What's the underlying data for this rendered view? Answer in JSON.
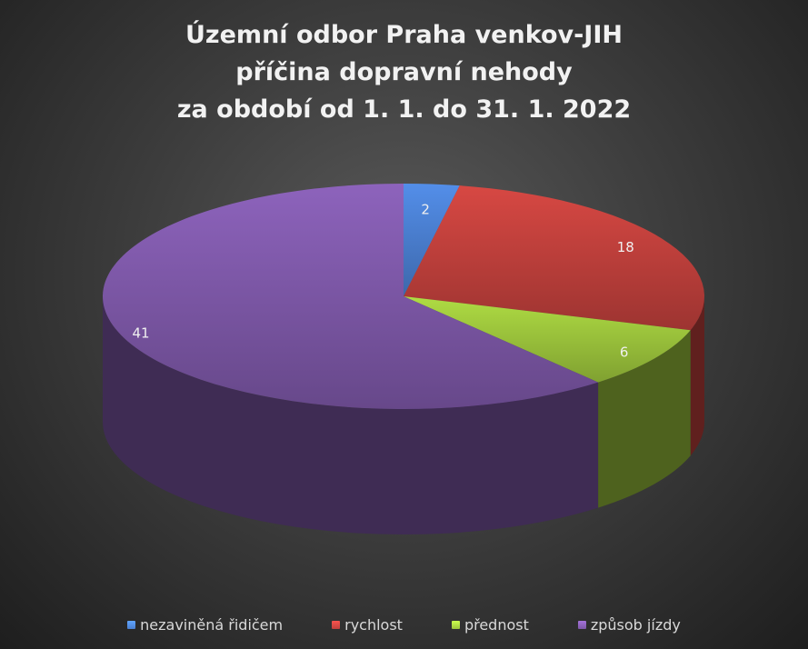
{
  "chart_data": {
    "type": "pie",
    "title_lines": [
      "Územní odbor Praha venkov-JIH",
      "příčina dopravní nehody",
      "za období od 1. 1. do 31. 1. 2022"
    ],
    "categories": [
      "nezaviněná řidičem",
      "rychlost",
      "přednost",
      "způsob jízdy"
    ],
    "values": [
      2,
      18,
      6,
      41
    ],
    "data_labels": [
      "2",
      "18",
      "6",
      "41"
    ],
    "colors": [
      "#4a7fd0",
      "#c0403c",
      "#9cc43c",
      "#7e58a8"
    ],
    "legend_position": "bottom",
    "style": "3d"
  }
}
